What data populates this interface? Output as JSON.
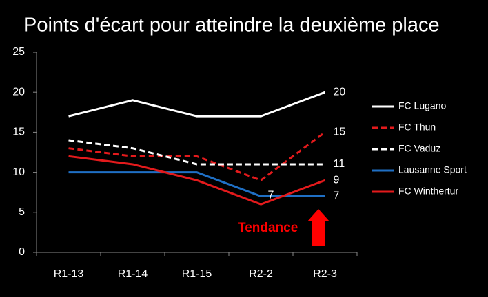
{
  "chart_data": {
    "type": "line",
    "title": "Points d'écart pour atteindre la deuxième place",
    "categories": [
      "R1-13",
      "R1-14",
      "R1-15",
      "R2-2",
      "R2-3"
    ],
    "series": [
      {
        "name": "FC Lugano",
        "color": "#ffffff",
        "style": "solid",
        "values": [
          17,
          19,
          17,
          17,
          20
        ]
      },
      {
        "name": "FC Thun",
        "color": "#e31a1c",
        "style": "dashed",
        "values": [
          13,
          12,
          12,
          9,
          15
        ]
      },
      {
        "name": "FC Vaduz",
        "color": "#ffffff",
        "style": "dashed",
        "values": [
          14,
          13,
          11,
          11,
          11
        ]
      },
      {
        "name": "Lausanne Sport",
        "color": "#1f6fc4",
        "style": "solid",
        "values": [
          10,
          10,
          10,
          7,
          7
        ]
      },
      {
        "name": "FC Winthertur",
        "color": "#e31a1c",
        "style": "solid",
        "values": [
          12,
          11,
          9,
          6,
          9
        ]
      }
    ],
    "ylim": [
      0,
      25
    ],
    "yticks": [
      0,
      5,
      10,
      15,
      20,
      25
    ],
    "grid": false,
    "legend": "right",
    "annotation": "Tendance",
    "annotation_color": "#ff0000"
  }
}
